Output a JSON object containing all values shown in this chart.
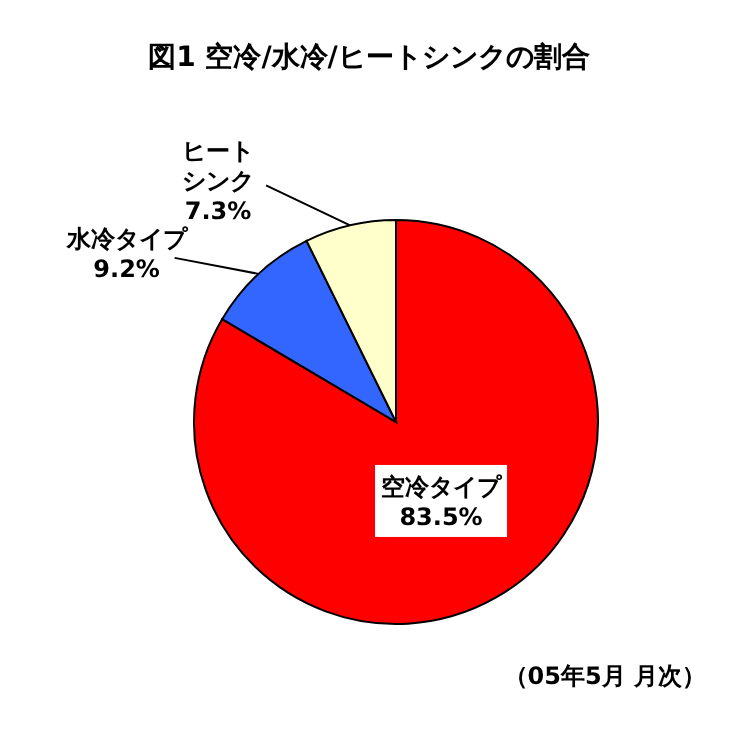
{
  "chart_data": {
    "type": "pie",
    "title": "図1  空冷/水冷/ヒートシンクの割合",
    "categories": [
      "空冷タイプ",
      "水冷タイプ",
      "ヒートシンク"
    ],
    "values": [
      83.5,
      9.2,
      7.3
    ],
    "colors": [
      "#ff0000",
      "#3366ff",
      "#ffffcc"
    ],
    "value_labels": [
      "83.5%",
      "9.2%",
      "7.3%"
    ],
    "annotations": [
      "（05年5月 月次）"
    ]
  }
}
